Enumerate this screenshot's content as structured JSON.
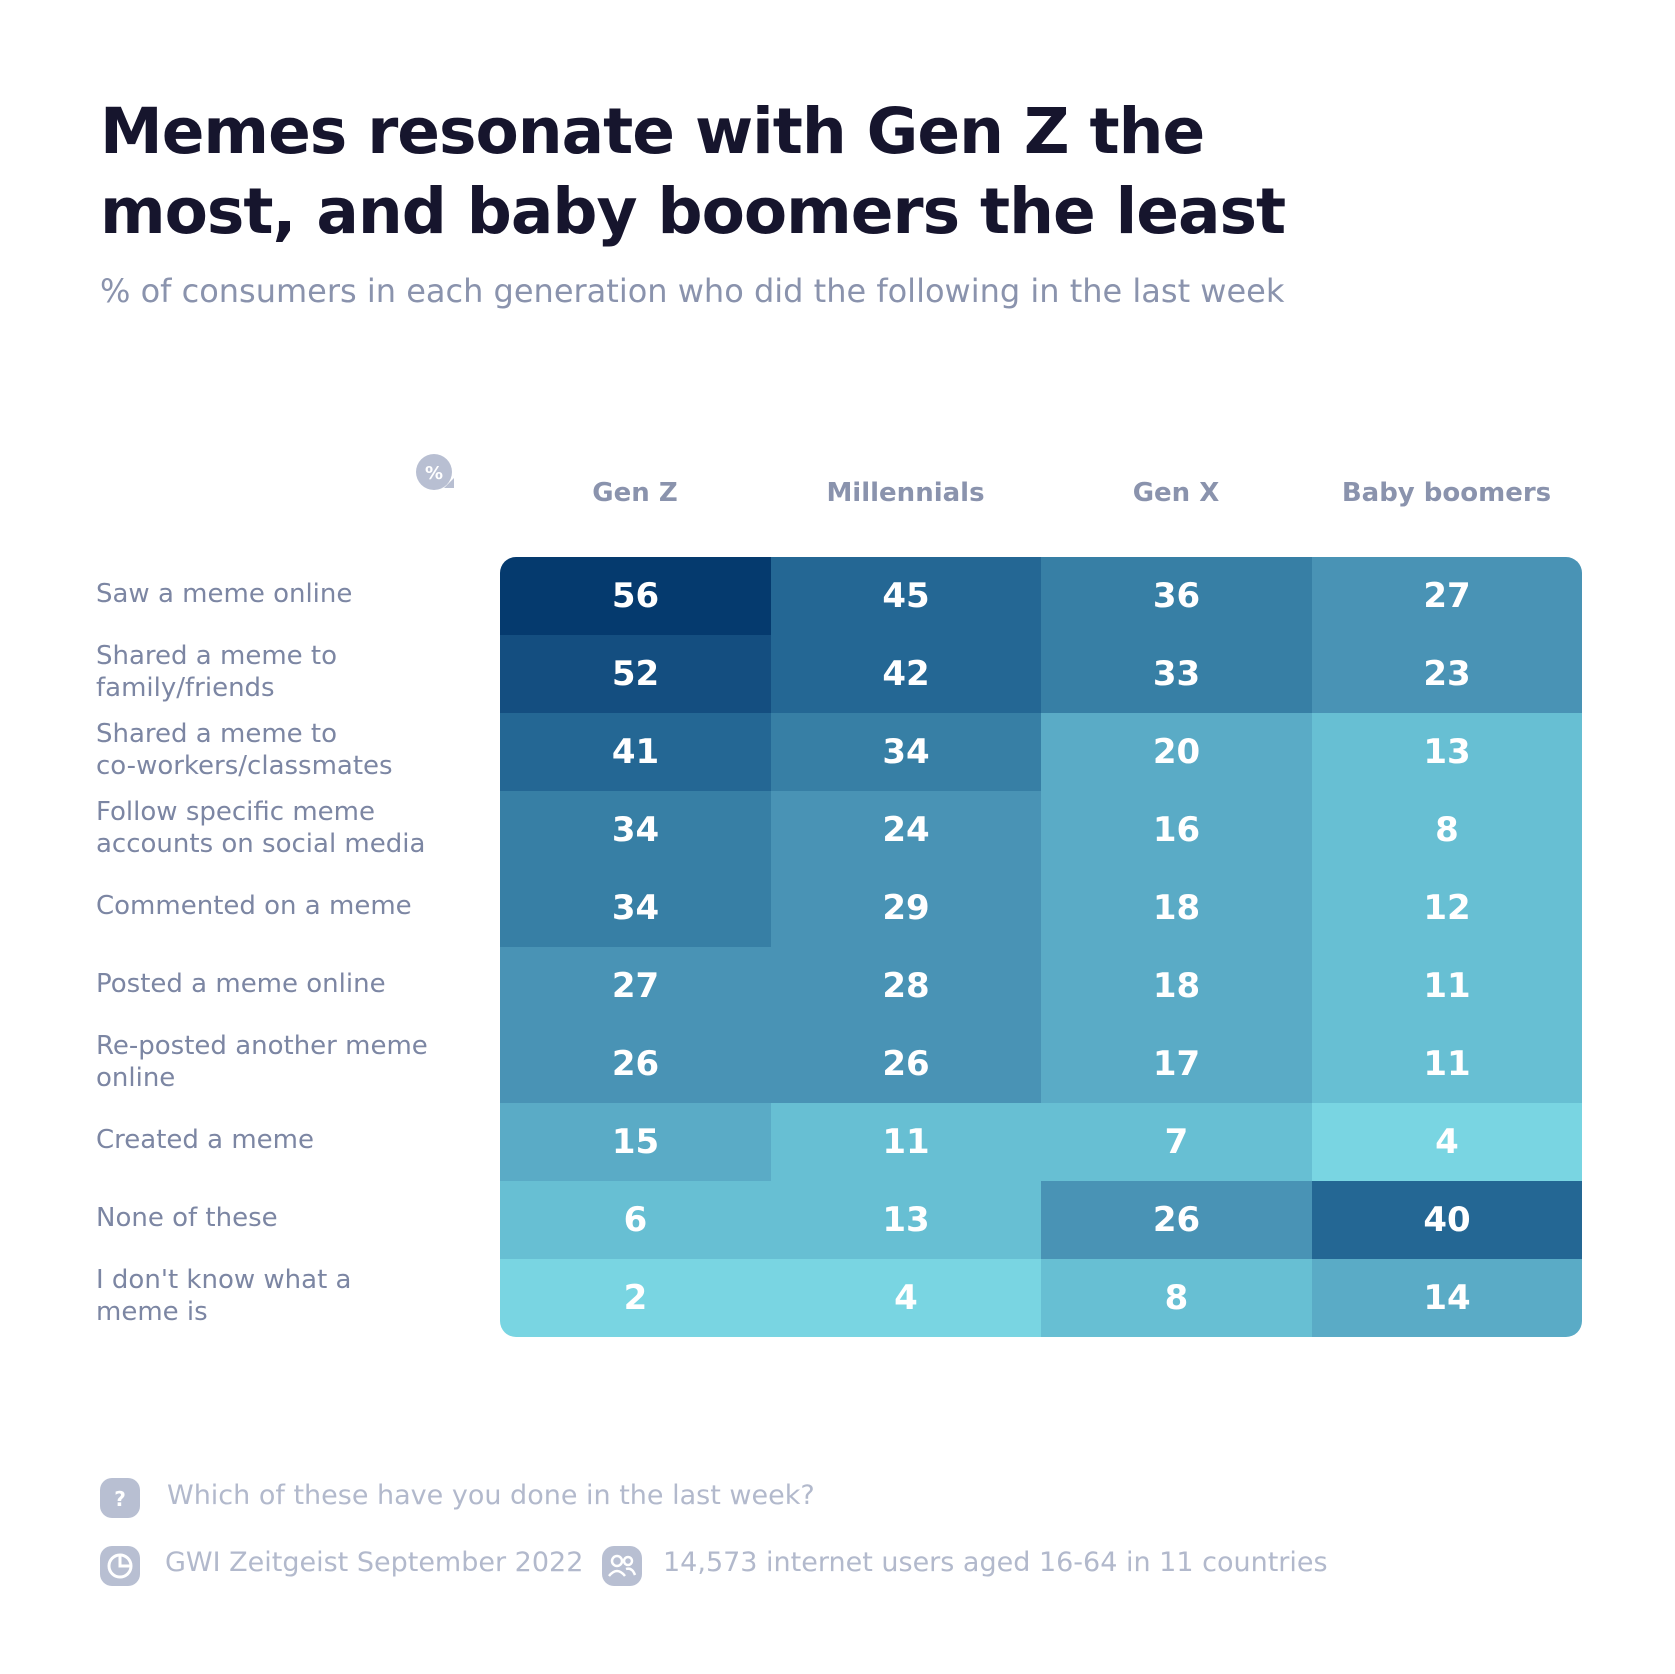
{
  "title_line1": "Memes resonate with Gen Z the",
  "title_line2": "most, and baby boomers the least",
  "subtitle": "% of consumers in each generation who did the following in the last week",
  "percent_symbol": "%",
  "question_symbol": "?",
  "chart_data": {
    "type": "heatmap",
    "columns": [
      "Gen Z",
      "Millennials",
      "Gen X",
      "Baby boomers"
    ],
    "rows": [
      [
        "Saw a meme online"
      ],
      [
        "Shared a meme to",
        "family/friends"
      ],
      [
        "Shared a meme to",
        "co-workers/classmates"
      ],
      [
        "Follow specific meme",
        "accounts on social media"
      ],
      [
        "Commented on a meme"
      ],
      [
        "Posted a meme online"
      ],
      [
        "Re-posted another meme",
        "online"
      ],
      [
        "Created a meme"
      ],
      [
        "None of these"
      ],
      [
        "I don't know what a",
        "meme is"
      ]
    ],
    "values": [
      [
        56,
        45,
        36,
        27
      ],
      [
        52,
        42,
        33,
        23
      ],
      [
        41,
        34,
        20,
        13
      ],
      [
        34,
        24,
        16,
        8
      ],
      [
        34,
        29,
        18,
        12
      ],
      [
        27,
        28,
        18,
        11
      ],
      [
        26,
        26,
        17,
        11
      ],
      [
        15,
        11,
        7,
        4
      ],
      [
        6,
        13,
        26,
        40
      ],
      [
        2,
        4,
        8,
        14
      ]
    ],
    "palette": [
      "#79d5e2",
      "#67bfd3",
      "#5aabc6",
      "#4993b5",
      "#377fa5",
      "#246794",
      "#144e80",
      "#053a6e"
    ]
  },
  "footer": {
    "question": "Which of these have you done in the last week?",
    "source": "GWI Zeitgeist September 2022",
    "sample": "14,573 internet users aged 16-64 in 11 countries"
  }
}
